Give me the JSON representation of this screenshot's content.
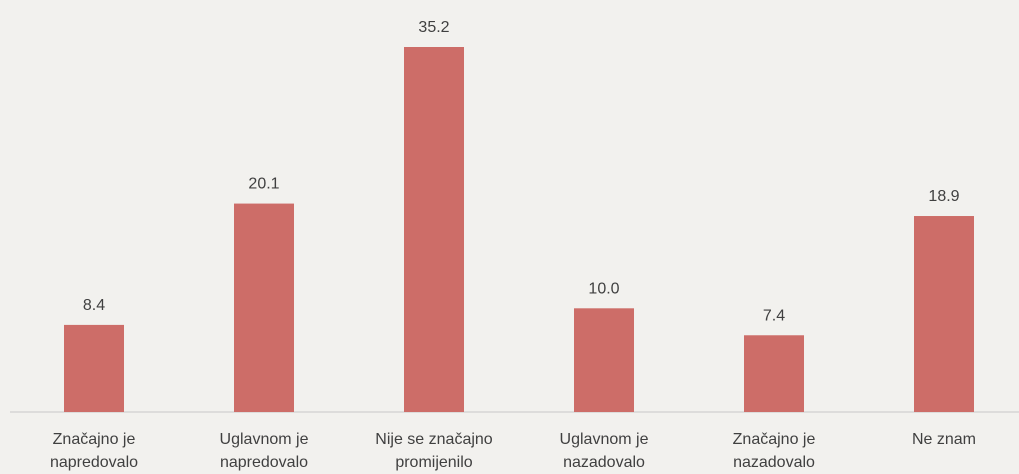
{
  "chart_data": {
    "type": "bar",
    "categories": [
      "Značajno je napredovalo",
      "Uglavnom je napredovalo",
      "Nije se značajno promijenilo",
      "Uglavnom je nazadovalo",
      "Značajno je nazadovalo",
      "Ne znam"
    ],
    "values": [
      8.4,
      20.1,
      35.2,
      10.0,
      7.4,
      18.9
    ],
    "value_labels": [
      "8.4",
      "20.1",
      "35.2",
      "10.0",
      "7.4",
      "18.9"
    ],
    "color": "#cd6d68"
  }
}
